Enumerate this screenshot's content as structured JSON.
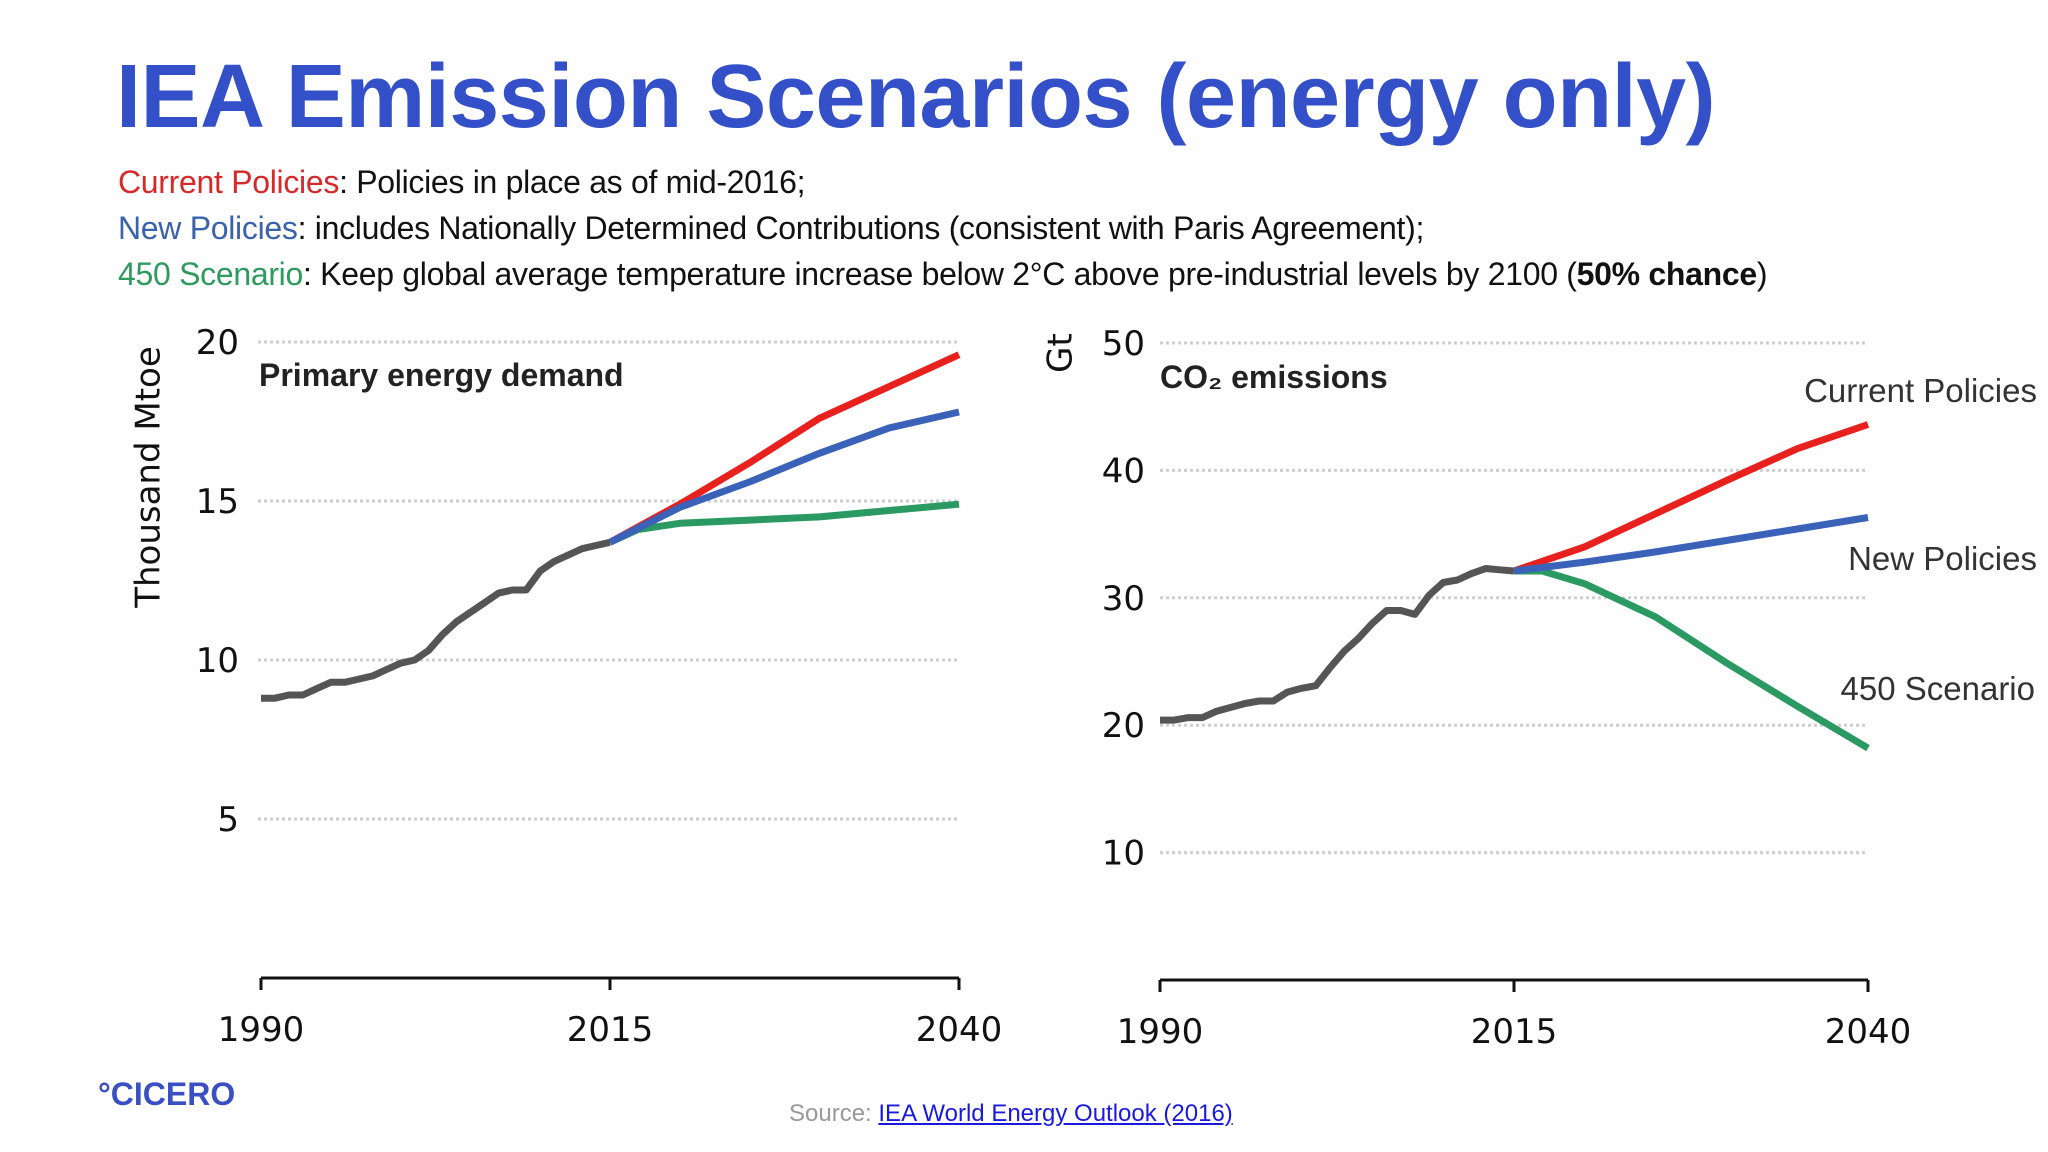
{
  "title": "IEA Emission Scenarios (energy only)",
  "descriptions": [
    {
      "term": "Current Policies",
      "color": "#d42a2a",
      "text": ": Policies in place as of mid-2016;"
    },
    {
      "term": "New Policies",
      "color": "#3a62ad",
      "text": ": includes Nationally Determined Contributions (consistent with Paris Agreement);"
    },
    {
      "term": "450 Scenario",
      "color": "#2e9a5e",
      "text": ": Keep global average temperature increase below 2°C above pre-industrial levels by 2100 (",
      "bold": "50% chance",
      "after": ")"
    }
  ],
  "footer": {
    "logo": "°CICERO",
    "source_prefix": "Source: ",
    "source_link": "IEA World Energy Outlook (2016)"
  },
  "colors": {
    "historical": "#555555",
    "current": "#e8211f",
    "new": "#3a62b8",
    "s450": "#2a9a62",
    "title": "#3350c8"
  },
  "chart_data": [
    {
      "type": "line",
      "title": "Primary energy demand",
      "ylabel": "Thousand Mtoe",
      "xlabel": "",
      "xlim": [
        1990,
        2040
      ],
      "ylim": [
        0,
        20
      ],
      "xticks": [
        "1990",
        "2015",
        "2040"
      ],
      "yticks": [
        "5",
        "10",
        "15",
        "20"
      ],
      "grid": "horizontal dotted",
      "series": [
        {
          "key": "historical",
          "x": [
            1990,
            1991,
            1992,
            1993,
            1994,
            1995,
            1996,
            1997,
            1998,
            1999,
            2000,
            2001,
            2002,
            2003,
            2004,
            2005,
            2006,
            2007,
            2008,
            2009,
            2010,
            2011,
            2012,
            2013,
            2014,
            2015
          ],
          "y": [
            8.8,
            8.8,
            8.9,
            8.9,
            9.1,
            9.3,
            9.3,
            9.4,
            9.5,
            9.7,
            9.9,
            10.0,
            10.3,
            10.8,
            11.2,
            11.5,
            11.8,
            12.1,
            12.2,
            12.2,
            12.8,
            13.1,
            13.3,
            13.5,
            13.6,
            13.7
          ]
        },
        {
          "key": "current",
          "x": [
            2015,
            2020,
            2025,
            2030,
            2035,
            2040
          ],
          "y": [
            13.7,
            14.9,
            16.2,
            17.6,
            18.6,
            19.6
          ]
        },
        {
          "key": "s450",
          "x": [
            2015,
            2017,
            2020,
            2025,
            2030,
            2035,
            2040
          ],
          "y": [
            13.7,
            14.1,
            14.3,
            14.4,
            14.5,
            14.7,
            14.9
          ]
        },
        {
          "key": "new",
          "x": [
            2015,
            2020,
            2025,
            2030,
            2035,
            2040
          ],
          "y": [
            13.7,
            14.8,
            15.6,
            16.5,
            17.3,
            17.8
          ]
        }
      ]
    },
    {
      "type": "line",
      "title": "CO₂ emissions",
      "ylabel": "Gt",
      "xlabel": "",
      "xlim": [
        1990,
        2040
      ],
      "ylim": [
        0,
        50
      ],
      "xticks": [
        "1990",
        "2015",
        "2040"
      ],
      "yticks": [
        "10",
        "20",
        "30",
        "40",
        "50"
      ],
      "grid": "horizontal dotted",
      "series": [
        {
          "key": "historical",
          "x": [
            1990,
            1991,
            1992,
            1993,
            1994,
            1995,
            1996,
            1997,
            1998,
            1999,
            2000,
            2001,
            2002,
            2003,
            2004,
            2005,
            2006,
            2007,
            2008,
            2009,
            2010,
            2011,
            2012,
            2013,
            2014,
            2015
          ],
          "y": [
            20.4,
            20.4,
            20.6,
            20.6,
            21.1,
            21.4,
            21.7,
            21.9,
            21.9,
            22.6,
            22.9,
            23.1,
            24.5,
            25.8,
            26.8,
            28.0,
            29.0,
            29.0,
            28.7,
            30.2,
            31.2,
            31.4,
            31.9,
            32.3,
            32.2,
            32.1
          ]
        },
        {
          "key": "current",
          "name": "Current Policies",
          "x": [
            2015,
            2020,
            2025,
            2030,
            2035,
            2040
          ],
          "y": [
            32.1,
            34.0,
            36.6,
            39.2,
            41.7,
            43.6
          ]
        },
        {
          "key": "s450",
          "name": "450 Scenario",
          "x": [
            2015,
            2017,
            2020,
            2025,
            2030,
            2035,
            2040
          ],
          "y": [
            32.1,
            32.1,
            31.1,
            28.5,
            24.9,
            21.5,
            18.2
          ]
        },
        {
          "key": "new",
          "name": "New Policies",
          "x": [
            2015,
            2020,
            2025,
            2030,
            2035,
            2040
          ],
          "y": [
            32.1,
            32.8,
            33.6,
            34.5,
            35.4,
            36.3
          ]
        }
      ]
    }
  ]
}
